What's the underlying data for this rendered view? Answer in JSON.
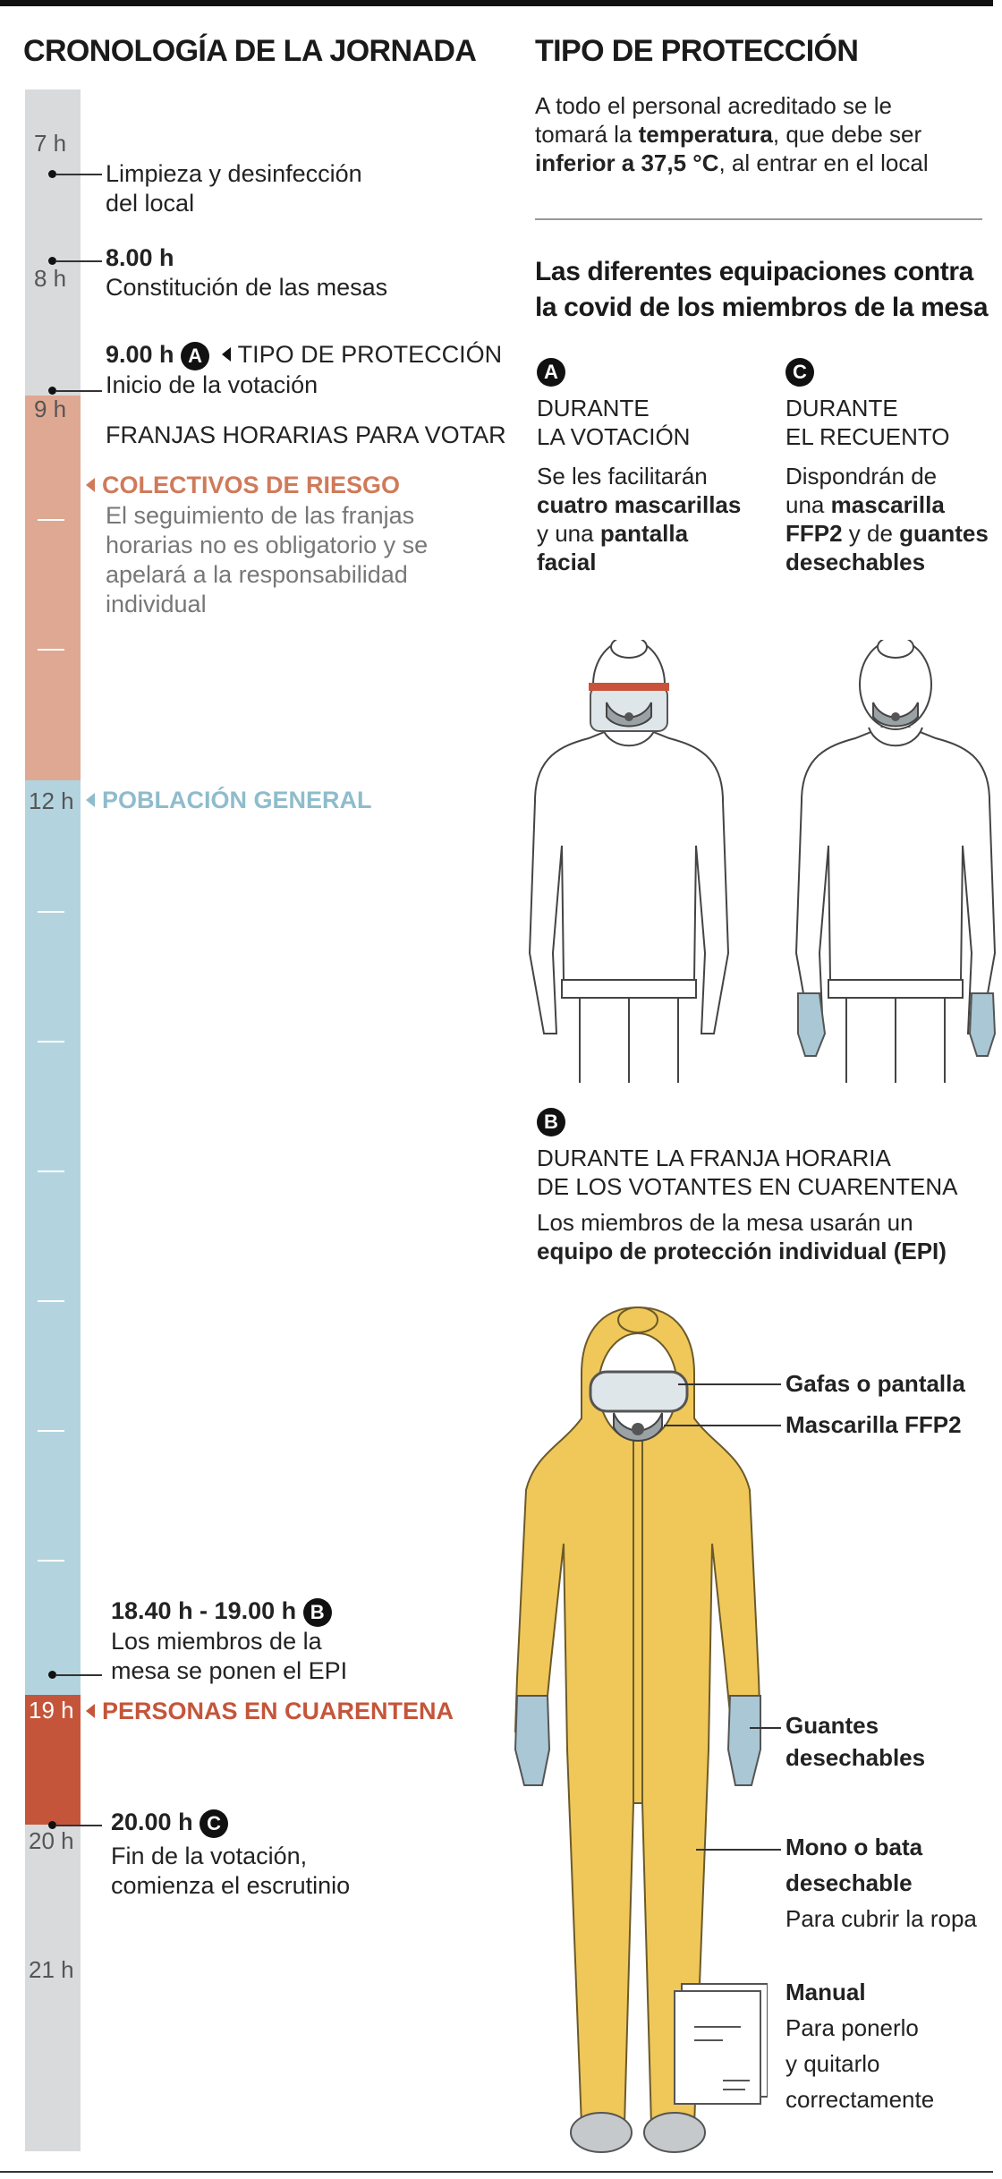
{
  "timeline": {
    "title": "CRONOLOGÍA DE LA JORNADA",
    "hours": [
      "7 h",
      "8 h",
      "9 h",
      "12 h",
      "19 h",
      "20 h",
      "21 h"
    ],
    "events": {
      "cleaning": [
        "Limpieza y desinfección",
        "del local"
      ],
      "constitution_time": "8.00 h",
      "constitution_label": "Constitución de las mesas",
      "voting_start_time": "9.00 h",
      "voting_start_badge": "A",
      "voting_start_ref": "TIPO DE PROTECCIÓN",
      "voting_start_label": "Inicio de la votación",
      "slots_title": "FRANJAS HORARIAS PARA VOTAR",
      "risk_title": "COLECTIVOS DE RIESGO",
      "risk_desc": [
        "El seguimiento de las franjas",
        "horarias no es obligatorio y se",
        "apelará a la responsabilidad",
        "individual"
      ],
      "general_title": "POBLACIÓN GENERAL",
      "epi_time": "18.40 h - 19.00 h",
      "epi_badge": "B",
      "epi_desc": [
        "Los miembros de la",
        "mesa se ponen el EPI"
      ],
      "quarantine_title": "PERSONAS EN CUARENTENA",
      "end_time": "20.00 h",
      "end_badge": "C",
      "end_desc": [
        "Fin de la votación,",
        "comienza el escrutinio"
      ]
    },
    "colors": {
      "risk": "#dfa892",
      "risk_text": "#d07a5a",
      "general": "#b3d4df",
      "general_text": "#8ebccc",
      "quarantine": "#c5553a",
      "bar_gray": "#d9dadc"
    }
  },
  "protection": {
    "title": "TIPO DE PROTECCIÓN",
    "intro": {
      "p1": "A todo el personal acreditado se le",
      "p2": "tomará la ",
      "b1": "temperatura",
      "p3": ", que debe ser",
      "b2": "inferior a 37,5 °C",
      "p4": ", al entrar en el local"
    },
    "subtitle": [
      "Las diferentes equipaciones contra",
      "la covid de los miembros de la mesa"
    ],
    "a": {
      "badge": "A",
      "heading": [
        "DURANTE",
        "LA VOTACIÓN"
      ],
      "t1": "Se les facilitarán",
      "b1": "cuatro mascarillas",
      "t2": "y una ",
      "b2": "pantalla",
      "b3": "facial"
    },
    "c": {
      "badge": "C",
      "heading": [
        "DURANTE",
        "EL RECUENTO"
      ],
      "t1": "Dispondrán de",
      "t2": "una ",
      "b1": "mascarilla",
      "b2": "FFP2",
      "t3": " y de ",
      "b3": "guantes",
      "b4": "desechables"
    },
    "b": {
      "badge": "B",
      "heading": [
        "DURANTE LA FRANJA HORARIA",
        "DE LOS VOTANTES EN CUARENTENA"
      ],
      "t1": "Los miembros de la mesa usarán un",
      "b1": "equipo de protección individual (EPI)"
    },
    "labels": {
      "goggles": "Gafas o pantalla",
      "mask": "Mascarilla FFP2",
      "gloves": [
        "Guantes",
        "desechables"
      ],
      "suit": [
        "Mono o bata",
        "desechable"
      ],
      "suit_desc": "Para cubrir la ropa",
      "manual": "Manual",
      "manual_desc": [
        "Para ponerlo",
        "y quitarlo",
        "correctamente"
      ]
    },
    "colors": {
      "suit": "#f0c85a",
      "glove": "#a9c7d4",
      "shield": "#c8533a"
    }
  }
}
